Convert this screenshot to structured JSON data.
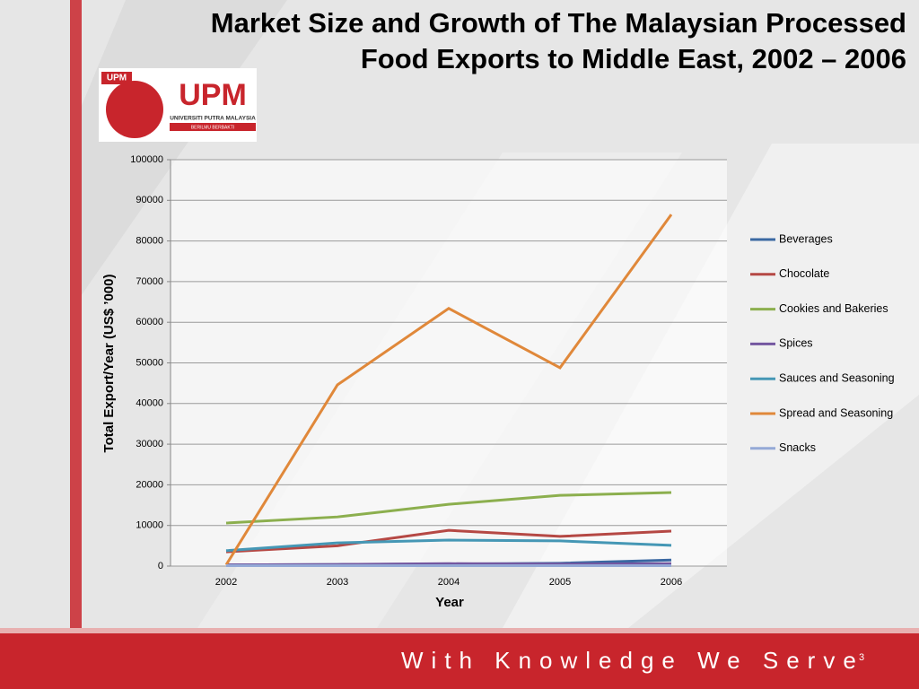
{
  "slide": {
    "logo_text": "UPM",
    "logo_subtitle": "UNIVERSITI PUTRA MALAYSIA",
    "logo_motto": "BERILMU BERBAKTI",
    "footer": "With Knowledge We Serve",
    "page_number": "3"
  },
  "chart_data": {
    "type": "line",
    "title": [
      "Market Size and Growth of The Malaysian Processed",
      "Food Exports to Middle East, 2002 – 2006"
    ],
    "x_label": "Year",
    "y_label": "Total Export/Year (US$ ’000)",
    "categories": [
      "2002",
      "2003",
      "2004",
      "2005",
      "2006"
    ],
    "series": [
      {
        "name": "Beverages",
        "color": "#3a68a2",
        "values": [
          300,
          400,
          500,
          700,
          1500
        ]
      },
      {
        "name": "Chocolate",
        "color": "#b54844",
        "values": [
          3500,
          5000,
          8800,
          7300,
          8600
        ]
      },
      {
        "name": "Cookies and Bakeries",
        "color": "#8caf4e",
        "values": [
          10600,
          12100,
          15200,
          17400,
          18100
        ]
      },
      {
        "name": "Spices",
        "color": "#7457a0",
        "values": [
          300,
          400,
          600,
          500,
          600
        ]
      },
      {
        "name": "Sauces and Seasoning",
        "color": "#4597b5",
        "values": [
          3800,
          5700,
          6400,
          6200,
          5100
        ]
      },
      {
        "name": "Spread and Seasoning",
        "color": "#e0883a",
        "values": [
          300,
          44600,
          63400,
          48800,
          86500
        ]
      },
      {
        "name": "Snacks",
        "color": "#94a9d6",
        "values": [
          100,
          100,
          100,
          100,
          100
        ]
      }
    ],
    "ylim": [
      0,
      100000
    ],
    "yticks": [
      0,
      10000,
      20000,
      30000,
      40000,
      50000,
      60000,
      70000,
      80000,
      90000,
      100000
    ],
    "grid": true,
    "legend": "right"
  }
}
